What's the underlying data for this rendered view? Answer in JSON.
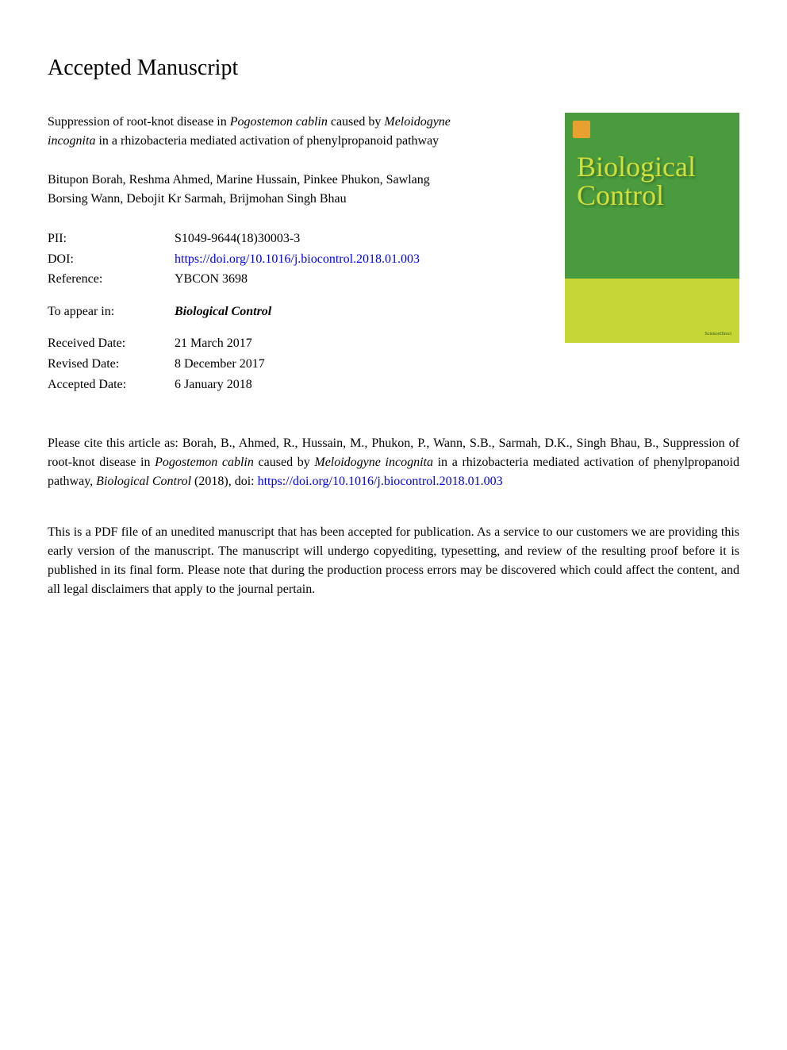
{
  "header": {
    "title": "Accepted Manuscript"
  },
  "article": {
    "title_part1": "Suppression of root-knot disease in ",
    "title_italic1": "Pogostemon cablin",
    "title_part2": " caused by ",
    "title_italic2": "Meloidogyne incognita",
    "title_part3": " in a rhizobacteria mediated activation of phenylpropanoid pathway"
  },
  "authors": "Bitupon Borah, Reshma Ahmed, Marine Hussain, Pinkee Phukon, Sawlang Borsing Wann, Debojit Kr Sarmah, Brijmohan Singh Bhau",
  "meta": {
    "pii_label": "PII:",
    "pii_value": "S1049-9644(18)30003-3",
    "doi_label": "DOI:",
    "doi_url": "https://doi.org/10.1016/j.biocontrol.2018.01.003",
    "reference_label": "Reference:",
    "reference_value": "YBCON 3698",
    "appear_label": "To appear in:",
    "appear_value": "Biological Control",
    "received_label": "Received Date:",
    "received_value": "21 March 2017",
    "revised_label": "Revised Date:",
    "revised_value": "8 December 2017",
    "accepted_label": "Accepted Date:",
    "accepted_value": "6 January 2018"
  },
  "cover": {
    "journal_title": "Biological Control",
    "footer_text": "ScienceDirect",
    "colors": {
      "green": "#4a9b3e",
      "yellow": "#c5d635",
      "title_color": "#d4df3a"
    }
  },
  "citation": {
    "prefix": "Please cite this article as: Borah, B., Ahmed, R., Hussain, M., Phukon, P., Wann, S.B., Sarmah, D.K., Singh Bhau, B., Suppression of root-knot disease in ",
    "italic1": "Pogostemon cablin",
    "mid1": " caused by ",
    "italic2": "Meloidogyne incognita",
    "mid2": " in a rhizobacteria mediated activation of phenylpropanoid pathway, ",
    "italic3": "Biological Control",
    "mid3": " (2018), doi: ",
    "link": "https://doi.org/10.1016/j.biocontrol.2018.01.003"
  },
  "disclaimer": "This is a PDF file of an unedited manuscript that has been accepted for publication. As a service to our customers we are providing this early version of the manuscript. The manuscript will undergo copyediting, typesetting, and review of the resulting proof before it is published in its final form. Please note that during the production process errors may be discovered which could affect the content, and all legal disclaimers that apply to the journal pertain."
}
